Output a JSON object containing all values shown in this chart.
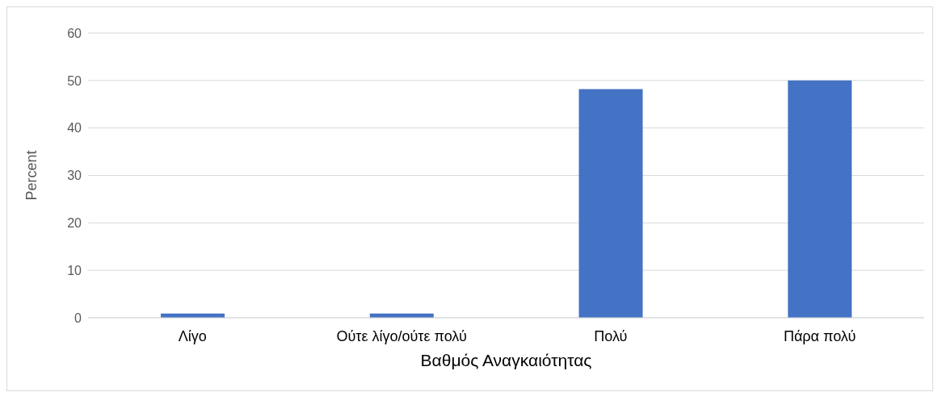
{
  "chart_data": {
    "type": "bar",
    "xlabel": "Βαθμός Αναγκαιότητας",
    "ylabel": "Percent",
    "categories": [
      "Λίγο",
      "Ούτε λίγο/ούτε πολύ",
      "Πολύ",
      "Πάρα πολύ"
    ],
    "values": [
      0.9,
      0.9,
      48.2,
      50
    ],
    "color": "#4472c4",
    "ylim": [
      0,
      60
    ],
    "yticks": [
      0,
      10,
      20,
      30,
      40,
      50,
      60
    ],
    "grid": "y"
  }
}
